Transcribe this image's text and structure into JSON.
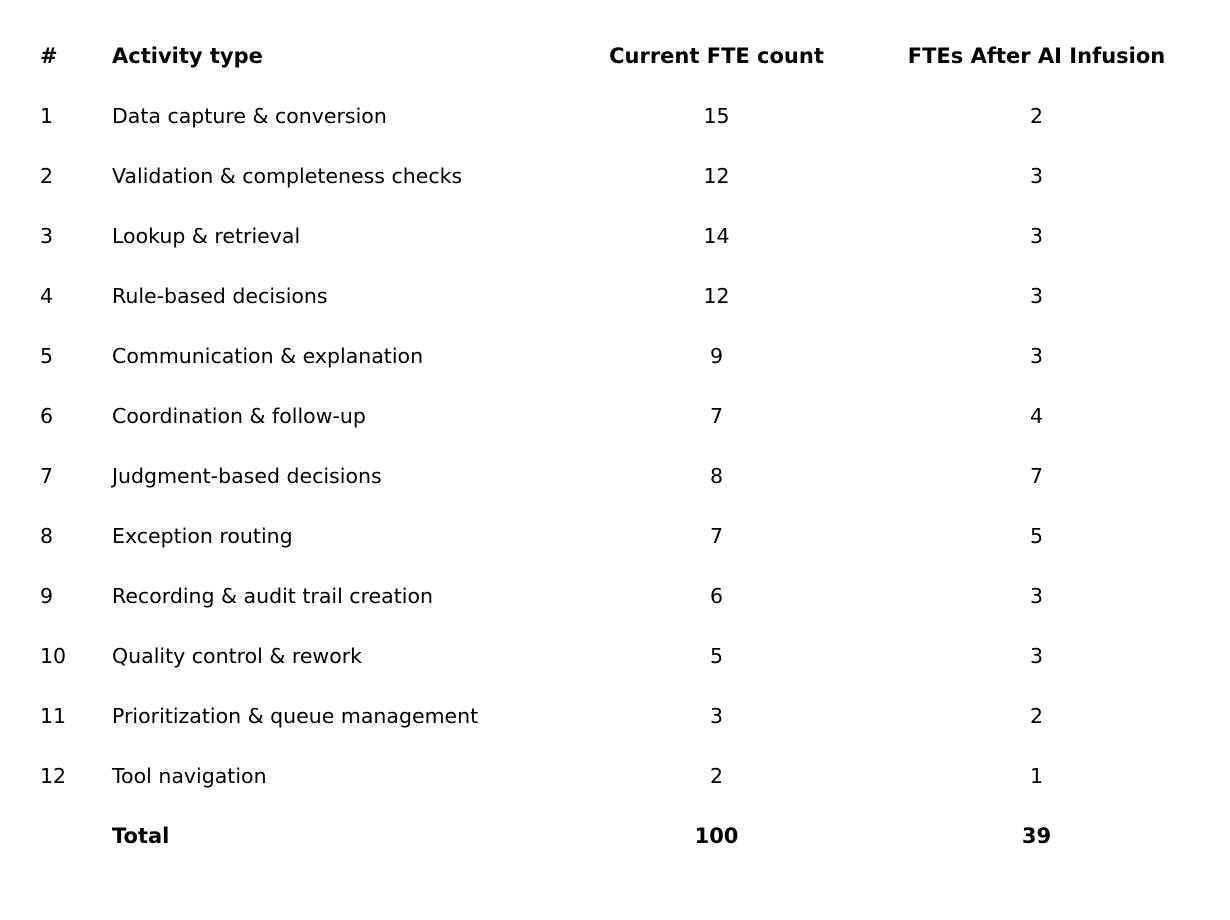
{
  "chart_data": {
    "type": "table",
    "title": "",
    "columns": [
      "#",
      "Activity type",
      "Current FTE count",
      "FTEs After AI Infusion"
    ],
    "rows": [
      {
        "num": "1",
        "activity": "Data capture & conversion",
        "current_fte": "15",
        "after_ai": "2"
      },
      {
        "num": "2",
        "activity": "Validation & completeness checks",
        "current_fte": "12",
        "after_ai": "3"
      },
      {
        "num": "3",
        "activity": "Lookup & retrieval",
        "current_fte": "14",
        "after_ai": "3"
      },
      {
        "num": "4",
        "activity": "Rule-based decisions",
        "current_fte": "12",
        "after_ai": "3"
      },
      {
        "num": "5",
        "activity": "Communication & explanation",
        "current_fte": "9",
        "after_ai": "3"
      },
      {
        "num": "6",
        "activity": "Coordination & follow-up",
        "current_fte": "7",
        "after_ai": "4"
      },
      {
        "num": "7",
        "activity": "Judgment-based decisions",
        "current_fte": "8",
        "after_ai": "7"
      },
      {
        "num": "8",
        "activity": "Exception routing",
        "current_fte": "7",
        "after_ai": "5"
      },
      {
        "num": "9",
        "activity": "Recording & audit trail creation",
        "current_fte": "6",
        "after_ai": "3"
      },
      {
        "num": "10",
        "activity": "Quality control & rework",
        "current_fte": "5",
        "after_ai": "3"
      },
      {
        "num": "11",
        "activity": "Prioritization & queue management",
        "current_fte": "3",
        "after_ai": "2"
      },
      {
        "num": "12",
        "activity": "Tool navigation",
        "current_fte": "2",
        "after_ai": "1"
      }
    ],
    "totals": {
      "label": "Total",
      "current_fte": "100",
      "after_ai": "39"
    },
    "text_color": "#000000",
    "background_color": "#ffffff"
  },
  "header": {
    "col_num": "#",
    "col_activity": "Activity type",
    "col_current": "Current FTE count",
    "col_after": "FTEs After AI Infusion"
  },
  "totals": {
    "label": "Total",
    "current_fte": "100",
    "after_ai": "39"
  }
}
